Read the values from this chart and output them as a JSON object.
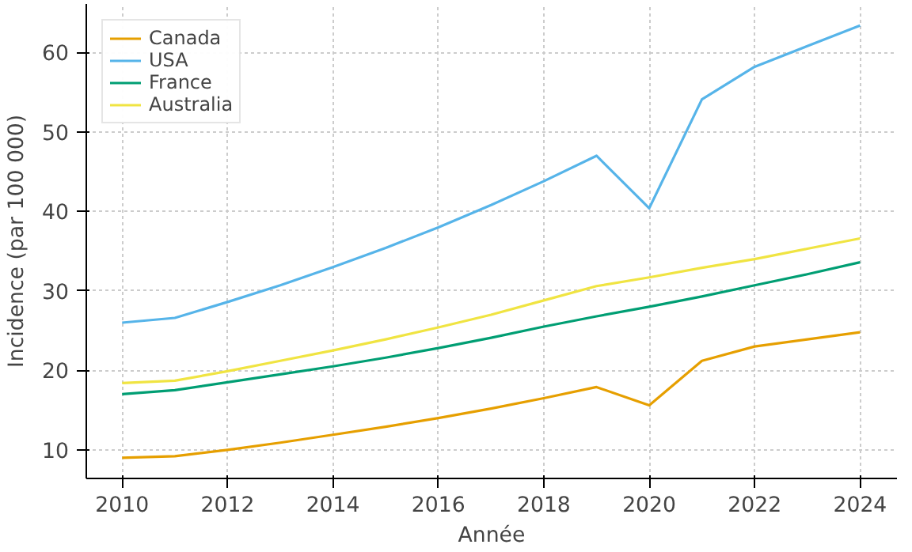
{
  "chart_data": {
    "type": "line",
    "xlabel": "Année",
    "ylabel": "Incidence (par 100 000)",
    "x": [
      2010,
      2011,
      2012,
      2013,
      2014,
      2015,
      2016,
      2017,
      2018,
      2019,
      2020,
      2021,
      2022,
      2023,
      2024
    ],
    "series": [
      {
        "name": "Canada",
        "color": "#e69f00",
        "values": [
          9.0,
          9.2,
          10.0,
          10.9,
          11.9,
          12.9,
          14.0,
          15.2,
          16.5,
          17.9,
          15.6,
          21.2,
          23.0,
          23.9,
          24.8
        ]
      },
      {
        "name": "USA",
        "color": "#56b4e9",
        "values": [
          26.0,
          26.6,
          28.6,
          30.7,
          33.0,
          35.4,
          38.0,
          40.8,
          43.8,
          47.0,
          40.4,
          54.1,
          58.2,
          60.8,
          63.4
        ]
      },
      {
        "name": "France",
        "color": "#009e73",
        "values": [
          17.0,
          17.5,
          18.5,
          19.5,
          20.5,
          21.6,
          22.8,
          24.1,
          25.5,
          26.8,
          28.0,
          29.3,
          30.7,
          32.1,
          33.6
        ]
      },
      {
        "name": "Australia",
        "color": "#f0e442",
        "values": [
          18.4,
          18.7,
          19.9,
          21.2,
          22.5,
          23.9,
          25.4,
          27.0,
          28.8,
          30.6,
          31.7,
          32.9,
          34.0,
          35.3,
          36.6
        ]
      }
    ],
    "xlim": [
      2009.32,
      2024.7
    ],
    "ylim": [
      6.4,
      66.1
    ],
    "xticks": [
      2010,
      2012,
      2014,
      2016,
      2018,
      2020,
      2022,
      2024
    ],
    "yticks": [
      10,
      20,
      30,
      40,
      50,
      60
    ],
    "grid": true,
    "legend": "top left",
    "line_style": "solid"
  }
}
